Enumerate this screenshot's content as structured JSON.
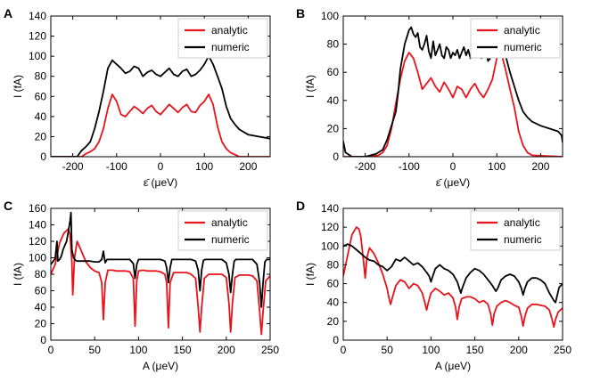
{
  "figure": {
    "colors": {
      "analytic": "#e8131b",
      "numeric": "#000000"
    }
  },
  "chart_data": [
    {
      "panel": "A",
      "type": "line",
      "xlabel": "ε̄ (μeV)",
      "ylabel": "I (fA)",
      "xlim": [
        -250,
        250
      ],
      "ylim": [
        0,
        140
      ],
      "xticks": [
        -200,
        -100,
        0,
        100,
        200
      ],
      "yticks": [
        0,
        20,
        40,
        60,
        80,
        100,
        120,
        140
      ],
      "legend": "top-right",
      "series": [
        {
          "name": "analytic",
          "x": [
            -250,
            -200,
            -180,
            -170,
            -160,
            -150,
            -140,
            -130,
            -120,
            -110,
            -100,
            -90,
            -80,
            -70,
            -60,
            -50,
            -40,
            -30,
            -20,
            -10,
            0,
            10,
            20,
            30,
            40,
            50,
            60,
            70,
            80,
            90,
            100,
            110,
            120,
            130,
            140,
            150,
            160,
            170,
            180,
            250
          ],
          "y": [
            0,
            0,
            0,
            3,
            5,
            8,
            15,
            28,
            48,
            62,
            55,
            42,
            40,
            45,
            50,
            47,
            43,
            48,
            51,
            45,
            42,
            47,
            52,
            48,
            44,
            49,
            52,
            45,
            44,
            51,
            55,
            62,
            52,
            30,
            15,
            8,
            4,
            2,
            0,
            0
          ]
        },
        {
          "name": "numeric",
          "x": [
            -250,
            -190,
            -180,
            -170,
            -160,
            -150,
            -140,
            -130,
            -120,
            -110,
            -100,
            -90,
            -80,
            -70,
            -60,
            -50,
            -40,
            -30,
            -20,
            -10,
            0,
            10,
            20,
            30,
            40,
            50,
            60,
            70,
            80,
            90,
            100,
            110,
            120,
            130,
            140,
            150,
            160,
            170,
            180,
            200,
            250
          ],
          "y": [
            0,
            0,
            6,
            10,
            15,
            28,
            45,
            65,
            88,
            96,
            92,
            88,
            83,
            85,
            90,
            88,
            80,
            84,
            86,
            82,
            80,
            84,
            88,
            82,
            80,
            85,
            87,
            80,
            82,
            86,
            92,
            100,
            92,
            80,
            68,
            50,
            38,
            32,
            27,
            22,
            18
          ]
        }
      ]
    },
    {
      "panel": "B",
      "type": "line",
      "xlabel": "ε̄ (μeV)",
      "ylabel": "I (fA)",
      "xlim": [
        -250,
        250
      ],
      "ylim": [
        0,
        100
      ],
      "xticks": [
        -200,
        -100,
        0,
        100,
        200
      ],
      "yticks": [
        0,
        20,
        40,
        60,
        80,
        100
      ],
      "legend": "top-right",
      "series": [
        {
          "name": "analytic",
          "x": [
            -250,
            -200,
            -170,
            -160,
            -150,
            -140,
            -130,
            -120,
            -110,
            -100,
            -90,
            -80,
            -70,
            -60,
            -50,
            -40,
            -30,
            -20,
            -10,
            0,
            10,
            20,
            30,
            40,
            50,
            60,
            70,
            80,
            90,
            100,
            110,
            120,
            130,
            140,
            150,
            160,
            170,
            180,
            250
          ],
          "y": [
            0,
            0,
            1,
            3,
            8,
            20,
            38,
            55,
            68,
            74,
            70,
            60,
            48,
            52,
            56,
            50,
            46,
            53,
            48,
            42,
            50,
            48,
            42,
            48,
            52,
            46,
            42,
            48,
            55,
            70,
            74,
            62,
            48,
            35,
            18,
            8,
            3,
            1,
            0
          ]
        },
        {
          "name": "numeric",
          "x": [
            -250,
            -245,
            -230,
            -200,
            -175,
            -160,
            -150,
            -140,
            -130,
            -125,
            -120,
            -110,
            -100,
            -95,
            -90,
            -85,
            -80,
            -75,
            -70,
            -65,
            -60,
            -55,
            -50,
            -45,
            -40,
            -35,
            -30,
            -25,
            -20,
            -15,
            -10,
            -5,
            0,
            5,
            10,
            15,
            20,
            25,
            30,
            35,
            40,
            45,
            50,
            55,
            60,
            65,
            70,
            75,
            80,
            85,
            90,
            95,
            100,
            105,
            110,
            115,
            120,
            130,
            140,
            150,
            160,
            170,
            180,
            200,
            220,
            240,
            248,
            250
          ],
          "y": [
            11,
            3,
            0,
            0,
            2,
            5,
            12,
            22,
            32,
            45,
            62,
            80,
            90,
            92,
            87,
            85,
            88,
            78,
            76,
            80,
            86,
            75,
            70,
            82,
            72,
            76,
            80,
            72,
            70,
            78,
            76,
            70,
            74,
            72,
            76,
            70,
            74,
            78,
            72,
            76,
            70,
            80,
            78,
            72,
            76,
            70,
            80,
            76,
            68,
            70,
            76,
            72,
            78,
            82,
            88,
            78,
            72,
            60,
            50,
            40,
            32,
            28,
            25,
            22,
            20,
            18,
            15,
            10
          ]
        }
      ]
    },
    {
      "panel": "C",
      "type": "line",
      "xlabel": "A (μeV)",
      "ylabel": "I (fA)",
      "xlim": [
        0,
        250
      ],
      "ylim": [
        0,
        160
      ],
      "xticks": [
        0,
        50,
        100,
        150,
        200,
        250
      ],
      "yticks": [
        0,
        20,
        40,
        60,
        80,
        100,
        120,
        140,
        160
      ],
      "legend": "top-right",
      "series": [
        {
          "name": "analytic",
          "x": [
            0,
            5,
            10,
            15,
            20,
            22,
            24,
            25,
            27,
            30,
            35,
            40,
            45,
            50,
            55,
            58,
            60,
            62,
            65,
            70,
            75,
            80,
            85,
            90,
            94,
            96,
            98,
            100,
            105,
            110,
            115,
            120,
            125,
            130,
            132,
            134,
            136,
            140,
            145,
            150,
            155,
            160,
            165,
            168,
            170,
            172,
            175,
            180,
            185,
            190,
            195,
            200,
            203,
            205,
            207,
            210,
            215,
            220,
            225,
            230,
            235,
            238,
            240,
            242,
            245,
            250
          ],
          "y": [
            80,
            92,
            118,
            130,
            135,
            128,
            95,
            55,
            100,
            120,
            108,
            95,
            88,
            84,
            82,
            70,
            25,
            70,
            85,
            85,
            84,
            84,
            84,
            83,
            75,
            17,
            72,
            84,
            85,
            84,
            84,
            84,
            83,
            80,
            70,
            15,
            70,
            82,
            82,
            82,
            82,
            80,
            75,
            40,
            10,
            40,
            75,
            80,
            80,
            80,
            80,
            76,
            45,
            10,
            45,
            76,
            79,
            79,
            79,
            78,
            72,
            35,
            7,
            35,
            72,
            78
          ]
        },
        {
          "name": "numeric",
          "x": [
            0,
            5,
            7,
            8,
            10,
            12,
            14,
            16,
            18,
            20,
            22,
            23,
            24,
            26,
            28,
            30,
            35,
            40,
            45,
            50,
            55,
            58,
            60,
            61,
            62,
            64,
            66,
            70,
            75,
            80,
            85,
            90,
            94,
            96,
            98,
            100,
            105,
            110,
            115,
            120,
            125,
            130,
            132,
            134,
            136,
            138,
            140,
            145,
            150,
            155,
            160,
            165,
            168,
            170,
            172,
            174,
            176,
            180,
            185,
            190,
            195,
            200,
            203,
            205,
            207,
            209,
            211,
            215,
            220,
            225,
            230,
            235,
            238,
            240,
            242,
            244,
            246,
            250
          ],
          "y": [
            92,
            99,
            120,
            96,
            98,
            102,
            110,
            115,
            120,
            132,
            145,
            155,
            110,
            100,
            97,
            96,
            96,
            96,
            96,
            95,
            95,
            98,
            108,
            100,
            94,
            98,
            98,
            98,
            98,
            98,
            98,
            98,
            93,
            75,
            92,
            98,
            98,
            98,
            98,
            98,
            98,
            96,
            88,
            70,
            88,
            98,
            98,
            98,
            98,
            98,
            98,
            96,
            85,
            60,
            85,
            97,
            98,
            98,
            98,
            98,
            98,
            94,
            80,
            58,
            80,
            96,
            98,
            98,
            98,
            98,
            98,
            92,
            70,
            40,
            70,
            95,
            98,
            98
          ]
        }
      ]
    },
    {
      "panel": "D",
      "type": "line",
      "xlabel": "A (μeV)",
      "ylabel": "I (fA)",
      "xlim": [
        0,
        250
      ],
      "ylim": [
        0,
        140
      ],
      "xticks": [
        0,
        50,
        100,
        150,
        200,
        250
      ],
      "yticks": [
        0,
        20,
        40,
        60,
        80,
        100,
        120,
        140
      ],
      "legend": "top-right",
      "series": [
        {
          "name": "analytic",
          "x": [
            0,
            5,
            10,
            15,
            18,
            20,
            23,
            25,
            27,
            30,
            35,
            40,
            45,
            50,
            52,
            54,
            56,
            60,
            65,
            70,
            75,
            80,
            85,
            90,
            93,
            95,
            97,
            100,
            105,
            110,
            115,
            120,
            125,
            128,
            130,
            132,
            135,
            140,
            145,
            150,
            155,
            160,
            165,
            168,
            170,
            172,
            175,
            180,
            185,
            190,
            195,
            200,
            203,
            205,
            207,
            210,
            215,
            220,
            225,
            230,
            235,
            238,
            240,
            242,
            245,
            250
          ],
          "y": [
            68,
            90,
            112,
            120,
            118,
            110,
            85,
            66,
            88,
            98,
            92,
            82,
            70,
            55,
            45,
            38,
            45,
            58,
            64,
            62,
            55,
            60,
            58,
            50,
            40,
            32,
            40,
            50,
            55,
            52,
            48,
            50,
            45,
            35,
            22,
            35,
            44,
            46,
            46,
            44,
            40,
            42,
            38,
            28,
            16,
            28,
            36,
            40,
            42,
            40,
            37,
            35,
            25,
            15,
            25,
            34,
            38,
            38,
            37,
            36,
            32,
            22,
            14,
            22,
            30,
            34
          ]
        },
        {
          "name": "numeric",
          "x": [
            0,
            5,
            10,
            15,
            20,
            25,
            30,
            35,
            40,
            45,
            50,
            55,
            60,
            65,
            70,
            75,
            80,
            85,
            90,
            95,
            98,
            100,
            102,
            105,
            110,
            115,
            120,
            125,
            130,
            132,
            134,
            136,
            140,
            145,
            150,
            155,
            160,
            165,
            170,
            172,
            174,
            176,
            180,
            185,
            190,
            195,
            200,
            203,
            205,
            207,
            210,
            215,
            220,
            225,
            230,
            235,
            240,
            242,
            244,
            246,
            250
          ],
          "y": [
            100,
            102,
            100,
            96,
            92,
            88,
            85,
            84,
            80,
            78,
            74,
            78,
            86,
            84,
            88,
            84,
            80,
            82,
            78,
            72,
            68,
            62,
            68,
            76,
            80,
            76,
            74,
            70,
            62,
            56,
            50,
            56,
            66,
            72,
            76,
            74,
            70,
            64,
            58,
            55,
            52,
            55,
            64,
            68,
            70,
            68,
            62,
            55,
            48,
            55,
            62,
            66,
            66,
            64,
            60,
            50,
            42,
            40,
            48,
            56,
            60
          ]
        }
      ]
    }
  ]
}
